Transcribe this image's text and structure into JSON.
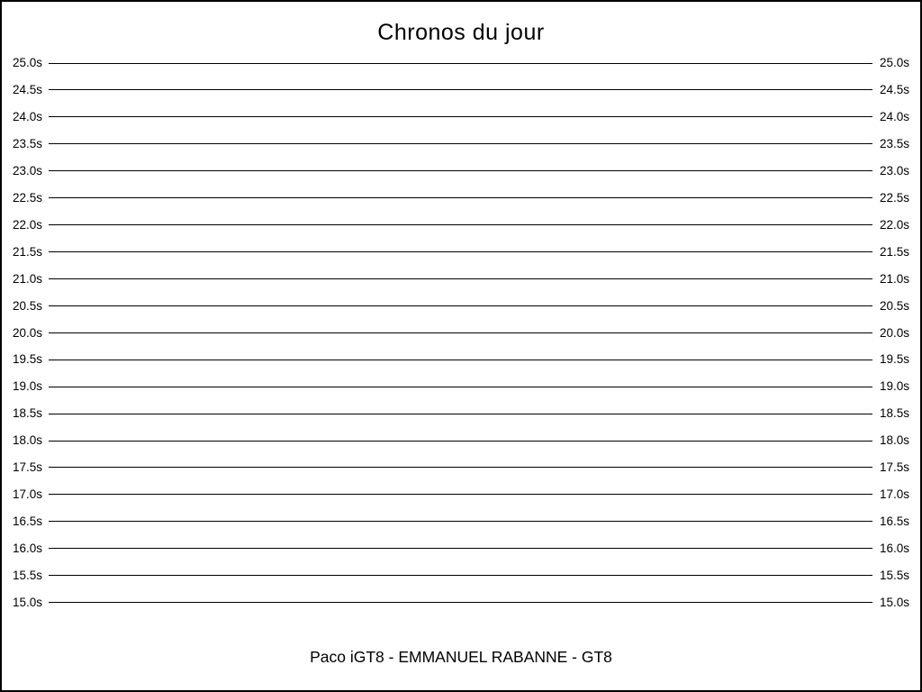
{
  "chart_data": {
    "type": "line",
    "title": "Chronos du jour",
    "footer": "Paco iGT8 - EMMANUEL RABANNE - GT8",
    "xlabel": "",
    "ylabel": "",
    "ylim": [
      15.0,
      25.0
    ],
    "ytick_step_seconds": 0.5,
    "yticks": [
      "25.0s",
      "24.5s",
      "24.0s",
      "23.5s",
      "23.0s",
      "22.5s",
      "22.0s",
      "21.5s",
      "21.0s",
      "20.5s",
      "20.0s",
      "19.5s",
      "19.0s",
      "18.5s",
      "18.0s",
      "17.5s",
      "17.0s",
      "16.5s",
      "16.0s",
      "15.5s",
      "15.0s"
    ],
    "ytick_values": [
      25.0,
      24.5,
      24.0,
      23.5,
      23.0,
      22.5,
      22.0,
      21.5,
      21.0,
      20.5,
      20.0,
      19.5,
      19.0,
      18.5,
      18.0,
      17.5,
      17.0,
      16.5,
      16.0,
      15.5,
      15.0
    ],
    "tick_labels_both_sides": true,
    "series": [],
    "grid": "horizontal-only",
    "legend": "none",
    "colors": {
      "line": "#000000",
      "text": "#000000",
      "background": "#ffffff",
      "border": "#000000"
    },
    "layout": {
      "first_line_y": 68,
      "line_spacing": 29.93
    }
  }
}
